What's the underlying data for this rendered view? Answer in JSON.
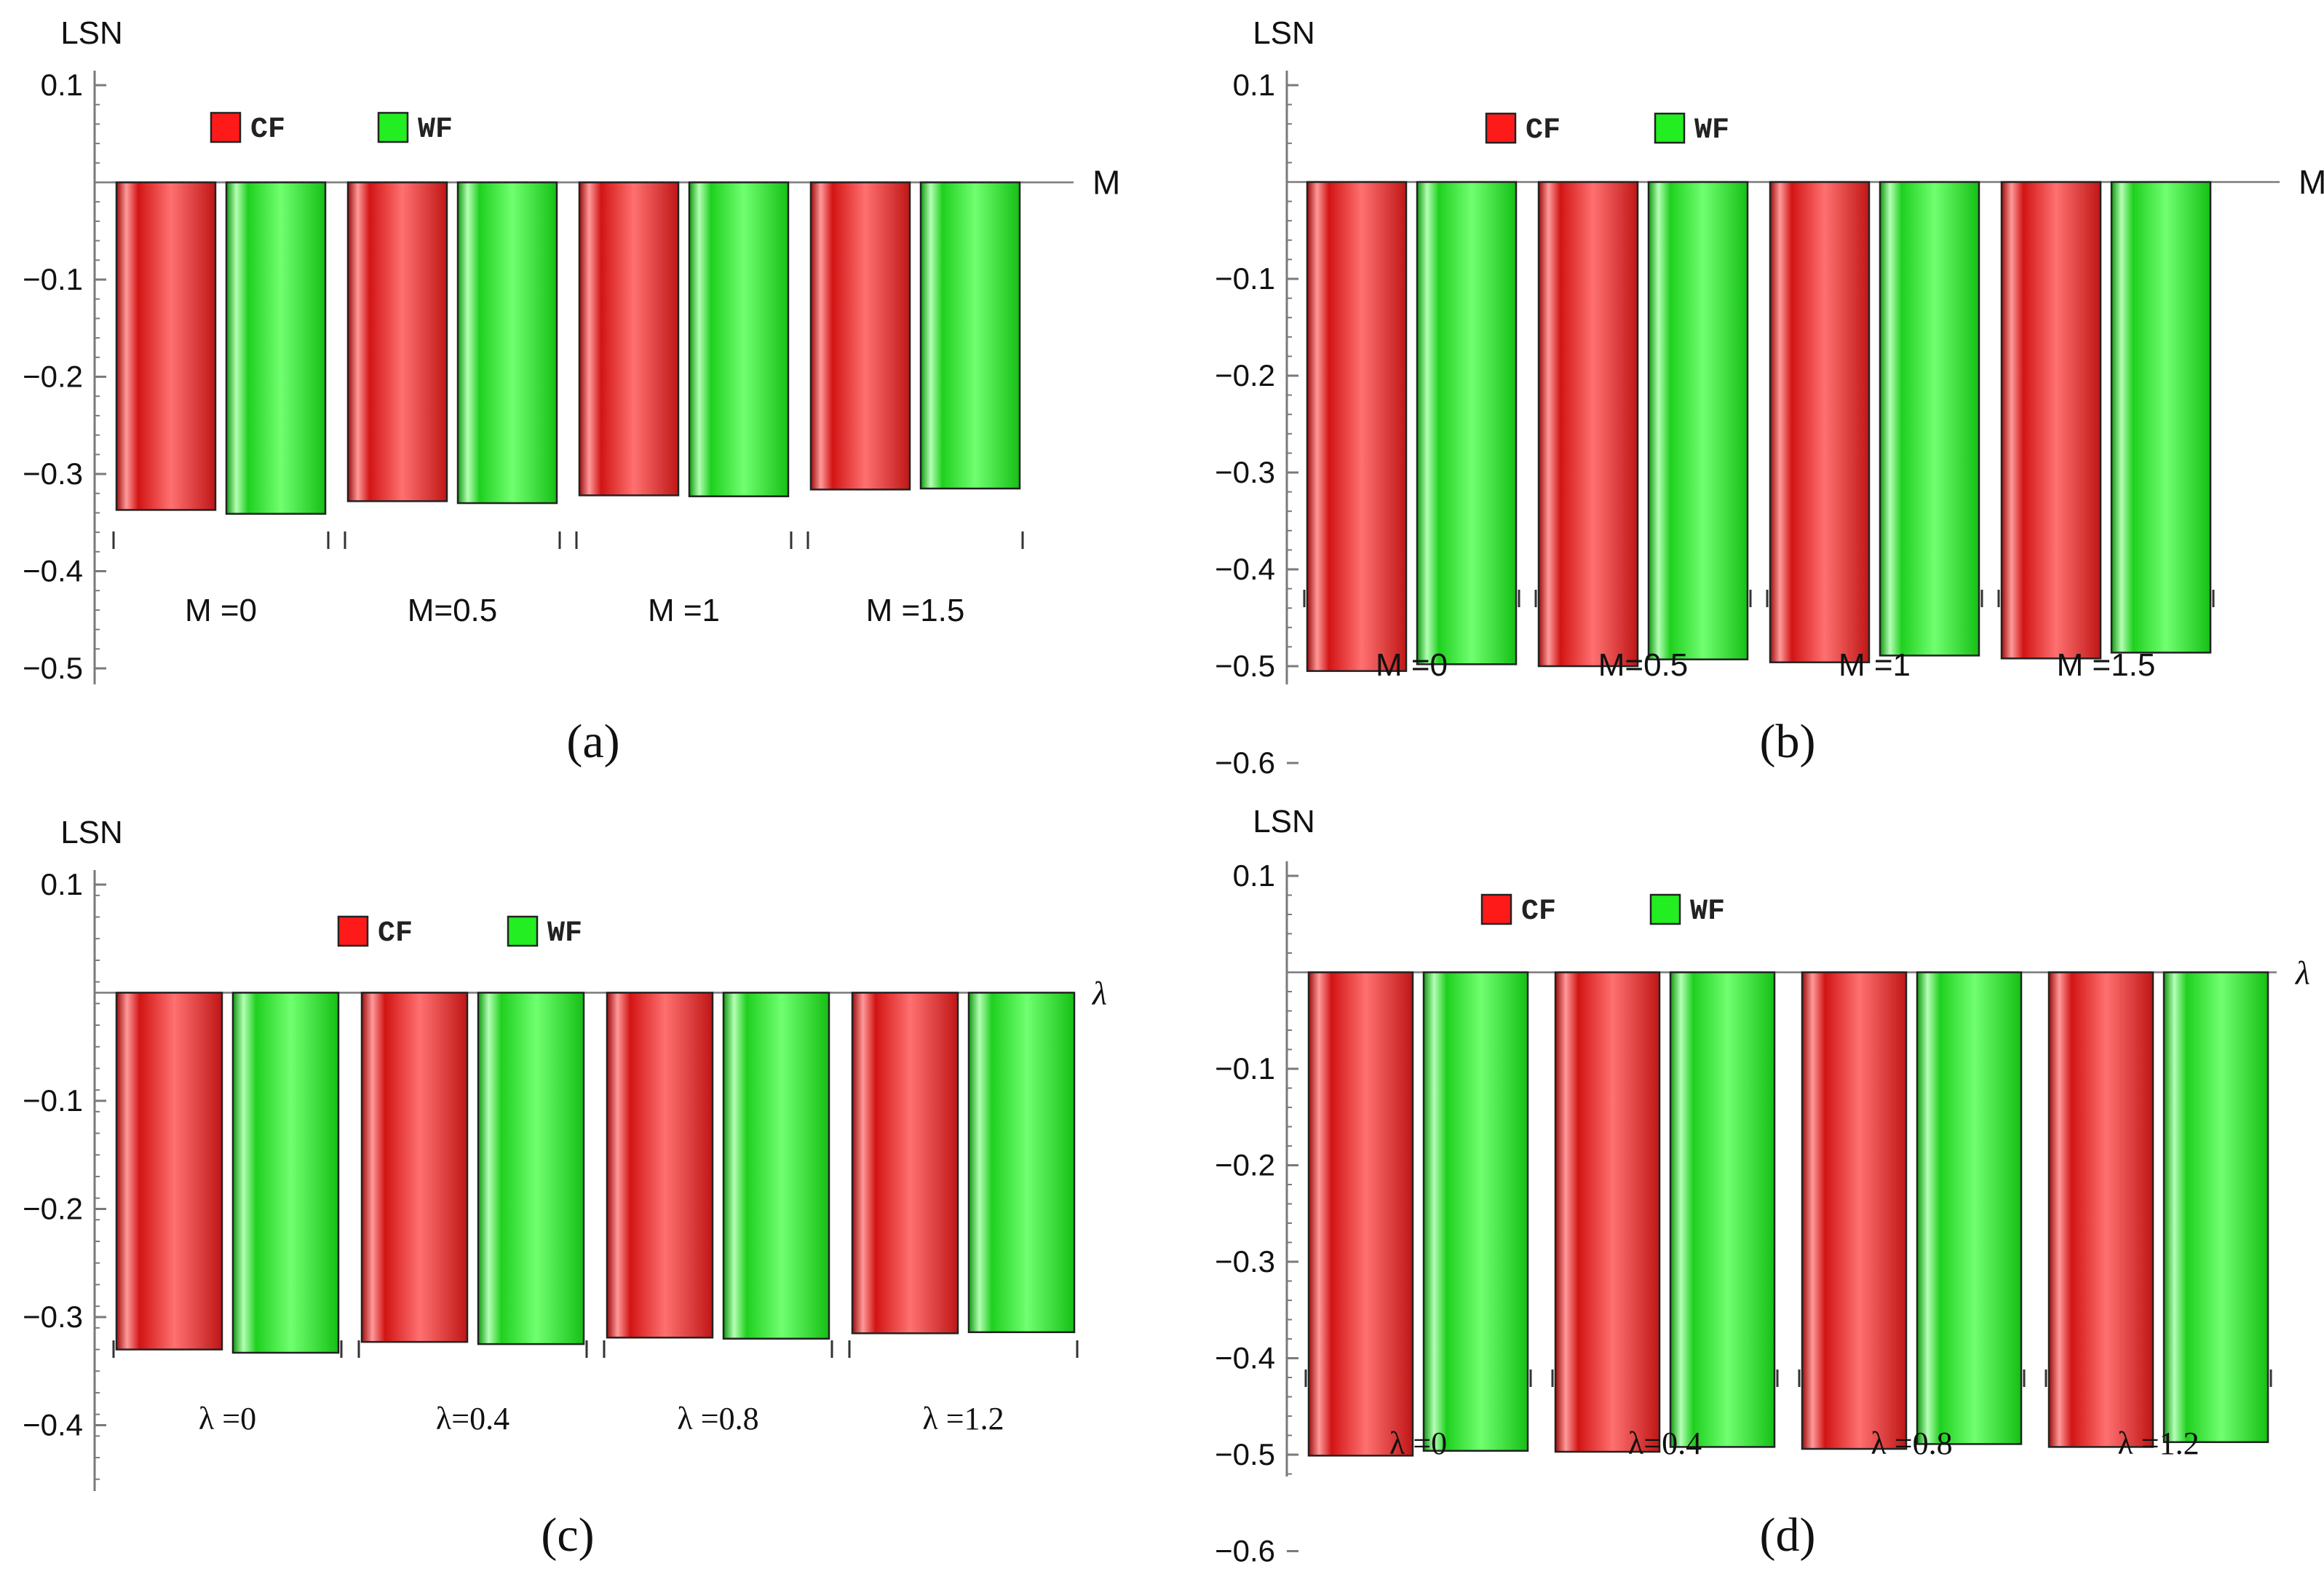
{
  "colors": {
    "cf": "#e01414",
    "cf_dark": "#b31010",
    "cf_light": "#ff8080",
    "wf": "#22dd22",
    "wf_dark": "#10b010",
    "wf_light": "#80ff80",
    "axis": "#7a7a7a"
  },
  "chart_data": [
    {
      "type": "bar",
      "panel_label": "(a)",
      "ylabel": "LSN",
      "xlabel": "M",
      "ylim": [
        -0.5,
        0.1
      ],
      "yticks": [
        "0.1",
        "−0.1",
        "−0.2",
        "−0.3",
        "−0.4",
        "−0.5"
      ],
      "categories": [
        "M =0",
        "M=0.5",
        "M =1",
        "M =1.5"
      ],
      "series": [
        {
          "name": "CF",
          "values": [
            -0.337,
            -0.328,
            -0.322,
            -0.316
          ]
        },
        {
          "name": "WF",
          "values": [
            -0.341,
            -0.33,
            -0.323,
            -0.315
          ]
        }
      ]
    },
    {
      "type": "bar",
      "panel_label": "(b)",
      "ylabel": "LSN",
      "xlabel": "M",
      "ylim": [
        -0.6,
        0.1
      ],
      "yticks": [
        "0.1",
        "−0.1",
        "−0.2",
        "−0.3",
        "−0.4",
        "−0.5",
        "−0.6"
      ],
      "categories": [
        "M =0",
        "M=0.5",
        "M =1",
        "M =1.5"
      ],
      "series": [
        {
          "name": "CF",
          "values": [
            -0.505,
            -0.5,
            -0.496,
            -0.492
          ]
        },
        {
          "name": "WF",
          "values": [
            -0.498,
            -0.493,
            -0.489,
            -0.486
          ]
        }
      ]
    },
    {
      "type": "bar",
      "panel_label": "(c)",
      "ylabel": "LSN",
      "xlabel": "λ",
      "ylim": [
        -0.45,
        0.1
      ],
      "yticks": [
        "0.1",
        "−0.1",
        "−0.2",
        "−0.3",
        "−0.4"
      ],
      "categories": [
        "λ =0",
        "λ=0.4",
        "λ =0.8",
        "λ =1.2"
      ],
      "series": [
        {
          "name": "CF",
          "values": [
            -0.33,
            -0.323,
            -0.319,
            -0.315
          ]
        },
        {
          "name": "WF",
          "values": [
            -0.333,
            -0.325,
            -0.32,
            -0.314
          ]
        }
      ]
    },
    {
      "type": "bar",
      "panel_label": "(d)",
      "ylabel": "LSN",
      "xlabel": "λ",
      "ylim": [
        -0.6,
        0.1
      ],
      "yticks": [
        "0.1",
        "−0.1",
        "−0.2",
        "−0.3",
        "−0.4",
        "−0.5",
        "−0.6"
      ],
      "categories": [
        "λ =0",
        "λ=0.4",
        "λ =0.8",
        "λ =1.2"
      ],
      "series": [
        {
          "name": "CF",
          "values": [
            -0.501,
            -0.497,
            -0.494,
            -0.492
          ]
        },
        {
          "name": "WF",
          "values": [
            -0.496,
            -0.492,
            -0.489,
            -0.487
          ]
        }
      ]
    }
  ]
}
